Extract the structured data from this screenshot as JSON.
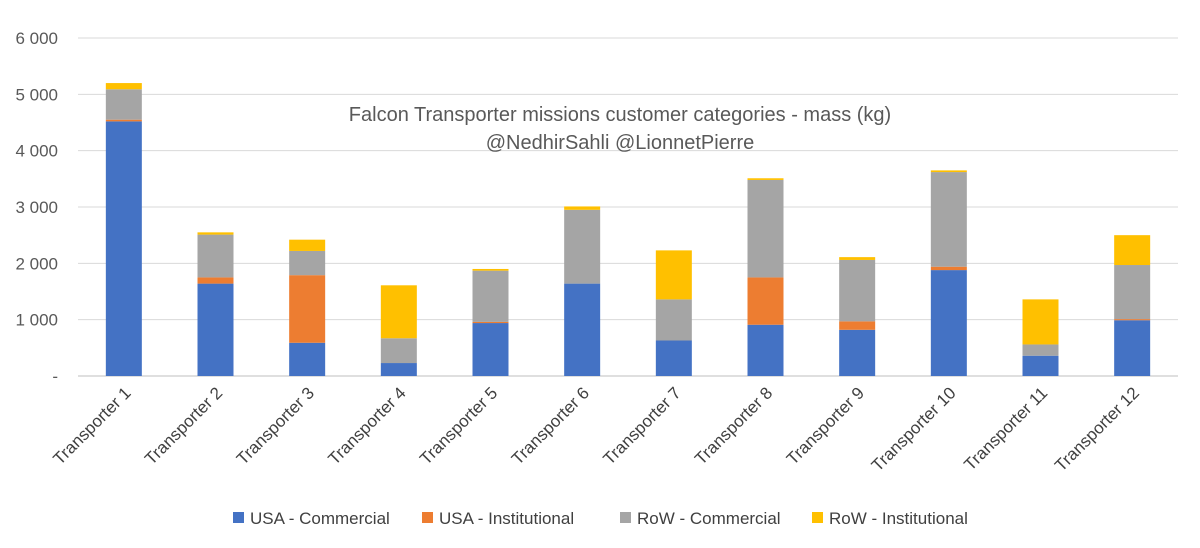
{
  "chart_data": {
    "type": "bar",
    "stacked": true,
    "title": "Falcon Transporter missions customer categories - mass (kg)",
    "subtitle": "@NedhirSahli @LionnetPierre",
    "xlabel": "",
    "ylabel": "",
    "ylim": [
      0,
      6000
    ],
    "yticks": [
      0,
      1000,
      2000,
      3000,
      4000,
      5000,
      6000
    ],
    "ytick_labels": [
      "-",
      "1 000",
      "2 000",
      "3 000",
      "4 000",
      "5 000",
      "6 000"
    ],
    "grid": true,
    "legend_position": "bottom",
    "categories": [
      "Transporter 1",
      "Transporter 2",
      "Transporter 3",
      "Transporter 4",
      "Transporter 5",
      "Transporter 6",
      "Transporter 7",
      "Transporter 8",
      "Transporter 9",
      "Transporter 10",
      "Transporter 11",
      "Transporter 12"
    ],
    "series": [
      {
        "name": "USA - Commercial",
        "color": "#4472C4",
        "values": [
          4520,
          1640,
          590,
          230,
          940,
          1640,
          630,
          910,
          820,
          1880,
          360,
          990
        ]
      },
      {
        "name": "USA - Institutional",
        "color": "#ED7D31",
        "values": [
          30,
          110,
          1200,
          0,
          20,
          0,
          0,
          840,
          150,
          60,
          0,
          20
        ]
      },
      {
        "name": "RoW - Commercial",
        "color": "#A5A5A5",
        "values": [
          540,
          760,
          430,
          440,
          910,
          1310,
          730,
          1730,
          1090,
          1680,
          200,
          960
        ]
      },
      {
        "name": "RoW - Institutional",
        "color": "#FFC000",
        "values": [
          110,
          40,
          200,
          940,
          30,
          60,
          870,
          30,
          50,
          30,
          800,
          530
        ]
      }
    ]
  }
}
